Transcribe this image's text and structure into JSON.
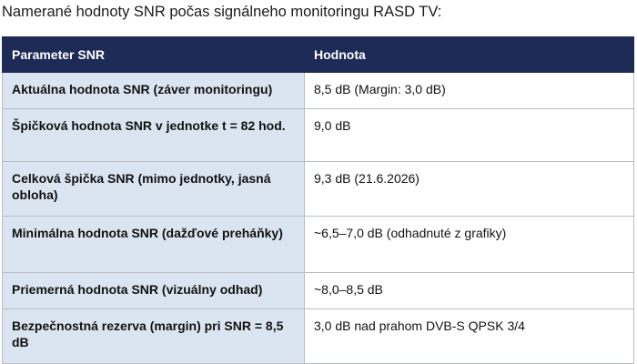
{
  "caption": "Namerané hodnoty SNR počas signálneho monitoringu RASD TV:",
  "table": {
    "header": [
      "Parameter SNR",
      "Hodnota"
    ],
    "rows": [
      [
        "Aktuálna hodnota SNR (záver monitoringu)",
        "8,5 dB (Margin: 3,0 dB)"
      ],
      [
        "Špičková hodnota SNR v jednotke t = 82 hod.",
        "9,0 dB"
      ],
      [
        "Celková špička SNR (mimo jednotky, jasná obloha)",
        "9,3 dB (21.6.2026)"
      ],
      [
        "Minimálna hodnota SNR (dažďové preháňky)",
        "~6,5–7,0 dB (odhadnuté z grafiky)"
      ],
      [
        "Priemerná hodnota SNR (vizuálny odhad)",
        "~8,0–8,5 dB"
      ],
      [
        "Bezpečnostná rezerva (margin) pri SNR = 8,5 dB",
        "3,0 dB nad prahom DVB-S QPSK 3/4"
      ]
    ]
  }
}
